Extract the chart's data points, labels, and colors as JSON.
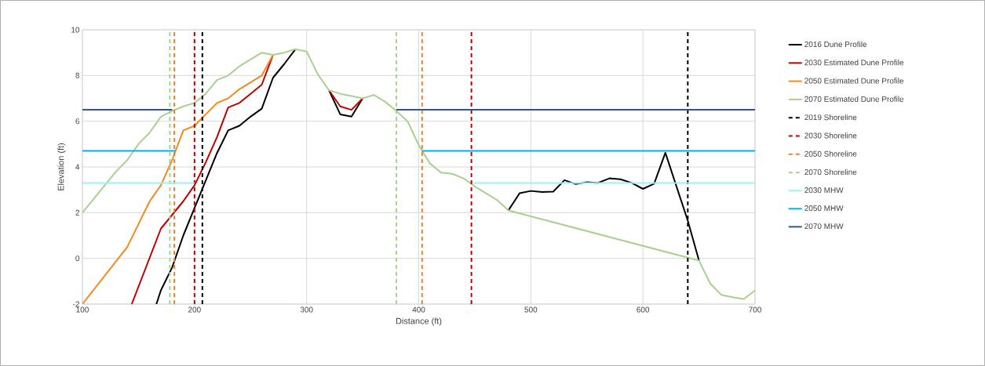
{
  "chart_data": {
    "type": "line",
    "xlabel": "Distance (ft)",
    "ylabel": "Elevation (ft)",
    "xlim": [
      100,
      700
    ],
    "ylim": [
      -2,
      10
    ],
    "xticks": [
      100,
      200,
      300,
      400,
      500,
      600,
      700
    ],
    "yticks": [
      -2,
      0,
      2,
      4,
      6,
      8,
      10
    ],
    "grid": true,
    "legend": "right",
    "marker": "none",
    "line_style": "solid",
    "series": [
      {
        "name": "2016 Dune Profile",
        "color": "#000000",
        "x": [
          166,
          170,
          180,
          190,
          200,
          210,
          220,
          230,
          240,
          250,
          260,
          270,
          280,
          290,
          null,
          320,
          330,
          340,
          350,
          null,
          480,
          490,
          500,
          510,
          520,
          530,
          540,
          550,
          560,
          570,
          580,
          590,
          600,
          610,
          620,
          640,
          650
        ],
        "values": [
          -2,
          -1.4,
          -0.4,
          1.0,
          2.2,
          3.4,
          4.6,
          5.6,
          5.8,
          6.2,
          6.55,
          7.9,
          8.5,
          9.15,
          null,
          7.35,
          6.3,
          6.2,
          7.0,
          null,
          2.1,
          2.85,
          2.95,
          2.9,
          2.92,
          3.42,
          3.25,
          3.33,
          3.3,
          3.5,
          3.46,
          3.3,
          3.04,
          3.27,
          4.62,
          1.65,
          -0.1
        ]
      },
      {
        "name": "2030 Estimated Dune Profile",
        "color": "#c00000",
        "x": [
          144,
          170,
          190,
          200,
          210,
          220,
          230,
          240,
          250,
          260,
          270,
          null,
          320,
          330,
          340,
          350
        ],
        "values": [
          -2,
          1.3,
          2.5,
          3.2,
          4.2,
          5.3,
          6.6,
          6.8,
          7.2,
          7.6,
          8.9,
          null,
          7.35,
          6.65,
          6.5,
          7.0
        ]
      },
      {
        "name": "2050 Estimated Dune Profile",
        "color": "#f5891f",
        "x": [
          100,
          140,
          160,
          170,
          180,
          190,
          200,
          210,
          220,
          230,
          240,
          250,
          260,
          270
        ],
        "values": [
          -2,
          0.5,
          2.5,
          3.2,
          4.3,
          5.6,
          5.8,
          6.3,
          6.8,
          7.0,
          7.4,
          7.7,
          8.0,
          8.9
        ]
      },
      {
        "name": "2070 Estimated Dune Profile",
        "color": "#a9d18e",
        "x": [
          100,
          110,
          120,
          130,
          140,
          150,
          160,
          170,
          180,
          190,
          200,
          210,
          220,
          230,
          240,
          250,
          260,
          270,
          280,
          290,
          300,
          310,
          320,
          330,
          340,
          350,
          360,
          370,
          380,
          390,
          400,
          410,
          420,
          430,
          440,
          450,
          460,
          470,
          480,
          650,
          660,
          670,
          680,
          690,
          700
        ],
        "values": [
          2.0,
          2.6,
          3.2,
          3.8,
          4.3,
          5.0,
          5.5,
          6.2,
          6.45,
          6.65,
          6.8,
          7.2,
          7.8,
          8.0,
          8.4,
          8.7,
          9.0,
          8.9,
          9.0,
          9.15,
          9.05,
          8.05,
          7.35,
          7.2,
          7.1,
          7.0,
          7.15,
          6.85,
          6.45,
          6.0,
          4.95,
          4.15,
          3.75,
          3.7,
          3.5,
          3.15,
          2.85,
          2.55,
          2.1,
          -0.1,
          -1.1,
          -1.6,
          -1.7,
          -1.78,
          -1.4
        ]
      },
      {
        "name": "2019 Shoreline",
        "color": "#000000",
        "line_style": "dashed",
        "x": [
          207,
          207,
          null,
          640,
          640
        ],
        "values": [
          -2,
          10,
          null,
          -2,
          10
        ]
      },
      {
        "name": "2030 Shoreline",
        "color": "#c00000",
        "line_style": "dashed",
        "x": [
          200,
          200,
          null,
          447,
          447
        ],
        "values": [
          -2,
          10,
          null,
          -2,
          10
        ]
      },
      {
        "name": "2050 Shoreline",
        "color": "#f08030",
        "line_style": "dashed",
        "x": [
          182,
          182,
          null,
          403,
          403
        ],
        "values": [
          -2,
          10,
          null,
          -2,
          10
        ]
      },
      {
        "name": "2070 Shoreline",
        "color": "#a9d18e",
        "line_style": "dashed",
        "x": [
          178,
          178,
          null,
          380,
          380
        ],
        "values": [
          -2,
          10,
          null,
          -2,
          10
        ]
      },
      {
        "name": "2030 MHW",
        "color": "#99f0ff",
        "x": [
          100,
          200,
          null,
          449,
          700
        ],
        "values": [
          3.3,
          3.3,
          null,
          3.3,
          3.3
        ]
      },
      {
        "name": "2050 MHW",
        "color": "#00b0f0",
        "x": [
          100,
          183,
          null,
          403,
          700
        ],
        "values": [
          4.7,
          4.7,
          null,
          4.7,
          4.7
        ]
      },
      {
        "name": "2070 MHW",
        "color": "#2f5597",
        "x": [
          100,
          180,
          null,
          380,
          700
        ],
        "values": [
          6.5,
          6.5,
          null,
          6.5,
          6.5
        ]
      }
    ]
  }
}
